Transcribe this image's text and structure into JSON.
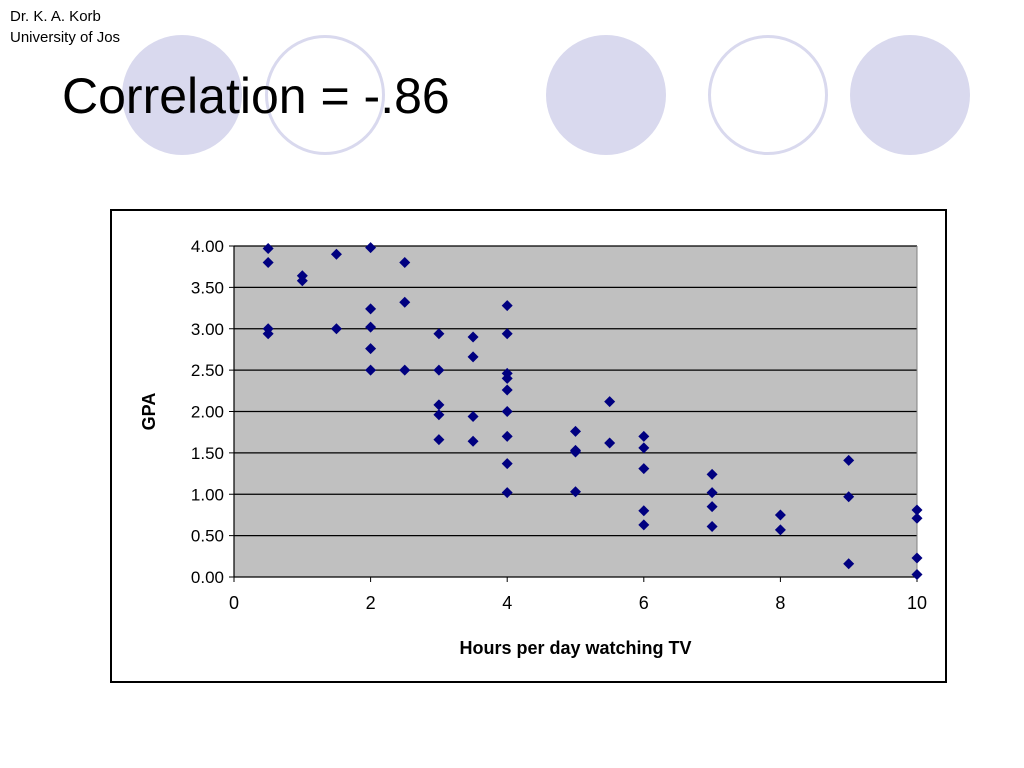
{
  "slide": {
    "author_line1": "Dr. K. A. Korb",
    "author_line2": "University of Jos",
    "title": "Correlation = -.86"
  },
  "colors": {
    "decor_circle": "#d9d9ee",
    "plot_background": "#c0c0c0",
    "marker": "#000080"
  },
  "chart_data": {
    "type": "scatter",
    "title": "",
    "xlabel": "Hours per day watching TV",
    "ylabel": "GPA",
    "xlim": [
      0,
      10
    ],
    "ylim": [
      0,
      4
    ],
    "xticks": [
      0,
      2,
      4,
      6,
      8,
      10
    ],
    "yticks": [
      0.0,
      0.5,
      1.0,
      1.5,
      2.0,
      2.5,
      3.0,
      3.5,
      4.0
    ],
    "ytick_labels": [
      "0.00",
      "0.50",
      "1.00",
      "1.50",
      "2.00",
      "2.50",
      "3.00",
      "3.50",
      "4.00"
    ],
    "grid": "horizontal",
    "legend": "none",
    "marker": "diamond",
    "points": [
      [
        0.5,
        3.97
      ],
      [
        0.5,
        3.8
      ],
      [
        0.5,
        3.0
      ],
      [
        0.5,
        2.94
      ],
      [
        1.0,
        3.64
      ],
      [
        1.0,
        3.58
      ],
      [
        1.5,
        3.9
      ],
      [
        1.5,
        3.0
      ],
      [
        2.0,
        3.98
      ],
      [
        2.0,
        3.24
      ],
      [
        2.0,
        3.02
      ],
      [
        2.0,
        2.76
      ],
      [
        2.0,
        2.5
      ],
      [
        2.5,
        3.8
      ],
      [
        2.5,
        3.32
      ],
      [
        2.5,
        2.5
      ],
      [
        3.0,
        2.94
      ],
      [
        3.0,
        2.5
      ],
      [
        3.0,
        2.08
      ],
      [
        3.0,
        1.96
      ],
      [
        3.0,
        1.66
      ],
      [
        3.5,
        2.9
      ],
      [
        3.5,
        2.66
      ],
      [
        3.5,
        1.94
      ],
      [
        3.5,
        1.64
      ],
      [
        4.0,
        3.28
      ],
      [
        4.0,
        2.94
      ],
      [
        4.0,
        2.46
      ],
      [
        4.0,
        2.4
      ],
      [
        4.0,
        2.26
      ],
      [
        4.0,
        2.0
      ],
      [
        4.0,
        1.7
      ],
      [
        4.0,
        1.37
      ],
      [
        4.0,
        1.02
      ],
      [
        5.0,
        1.76
      ],
      [
        5.0,
        1.53
      ],
      [
        5.0,
        1.51
      ],
      [
        5.0,
        1.03
      ],
      [
        5.5,
        2.12
      ],
      [
        5.5,
        1.62
      ],
      [
        6.0,
        1.7
      ],
      [
        6.0,
        1.56
      ],
      [
        6.0,
        1.31
      ],
      [
        6.0,
        0.8
      ],
      [
        6.0,
        0.63
      ],
      [
        7.0,
        1.24
      ],
      [
        7.0,
        1.02
      ],
      [
        7.0,
        0.85
      ],
      [
        7.0,
        0.61
      ],
      [
        8.0,
        0.75
      ],
      [
        8.0,
        0.57
      ],
      [
        9.0,
        1.41
      ],
      [
        9.0,
        0.97
      ],
      [
        9.0,
        0.16
      ],
      [
        10.0,
        0.81
      ],
      [
        10.0,
        0.71
      ],
      [
        10.0,
        0.23
      ],
      [
        10.0,
        0.03
      ]
    ]
  }
}
